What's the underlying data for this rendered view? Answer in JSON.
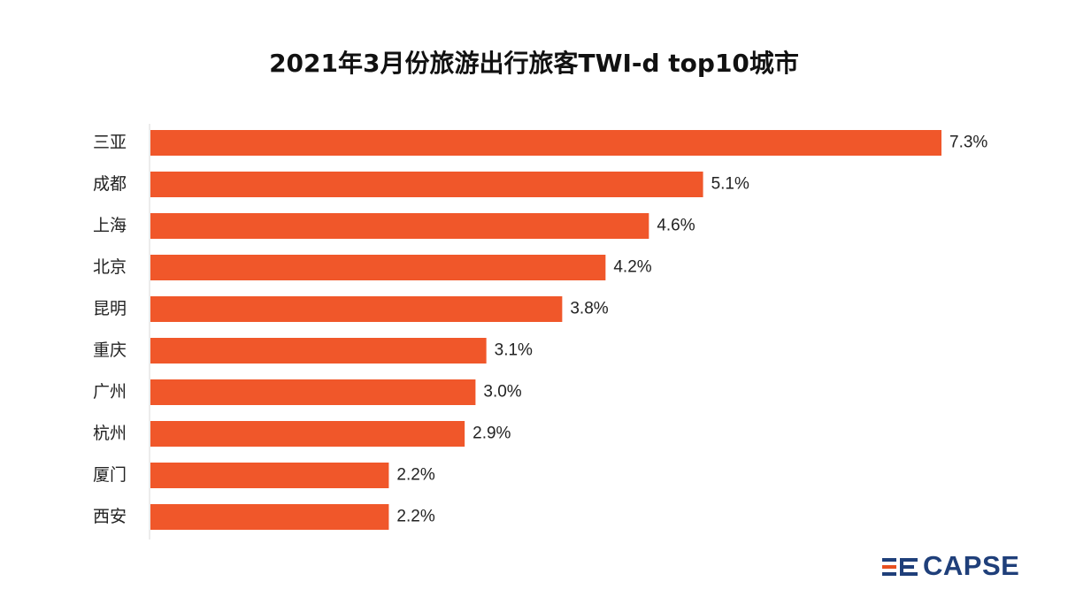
{
  "chart_data": {
    "type": "bar",
    "orientation": "horizontal",
    "title": "2021年3月份旅游出行旅客TWI-d top10城市",
    "categories": [
      "三亚",
      "成都",
      "上海",
      "北京",
      "昆明",
      "重庆",
      "广州",
      "杭州",
      "厦门",
      "西安"
    ],
    "values": [
      7.3,
      5.1,
      4.6,
      4.2,
      3.8,
      3.1,
      3.0,
      2.9,
      2.2,
      2.2
    ],
    "value_labels": [
      "7.3%",
      "5.1%",
      "4.6%",
      "4.2%",
      "3.8%",
      "3.1%",
      "3.0%",
      "2.9%",
      "2.2%",
      "2.2%"
    ],
    "xlim": [
      0,
      7.3
    ],
    "bar_color": "#f0572a",
    "grid": false
  },
  "logo": {
    "text": "CAPSE",
    "primary_color": "#1f3f7a",
    "accent_color": "#e8501f"
  }
}
